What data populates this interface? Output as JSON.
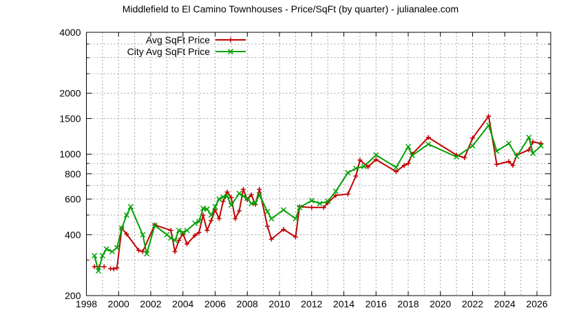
{
  "chart_data": {
    "type": "line",
    "title": "Middlefield to El Camino Townhouses - Price/SqFt (by quarter) - julianalee.com",
    "xlabel": "",
    "ylabel": "",
    "xlim": [
      1998,
      2027
    ],
    "ylim": [
      200,
      4000
    ],
    "yscale": "log",
    "grid": true,
    "legend_position": "top-left",
    "x_ticks": [
      "1998",
      "2000",
      "2002",
      "2004",
      "2006",
      "2008",
      "2010",
      "2012",
      "2014",
      "2016",
      "2018",
      "2020",
      "2022",
      "2024",
      "2026"
    ],
    "y_ticks": [
      "200",
      "400",
      "600",
      "800",
      "1000",
      "1500",
      "2000",
      "4000"
    ],
    "series": [
      {
        "name": "Avg SqFt Price",
        "color": "#c00000",
        "marker": "plus",
        "segments": [
          [
            [
              1998.5,
              278
            ],
            [
              1998.8,
              278
            ]
          ],
          [
            [
              1999.1,
              278
            ]
          ],
          [
            [
              1999.5,
              272
            ],
            [
              1999.7,
              271
            ],
            [
              1999.9,
              274
            ],
            [
              2000.2,
              430
            ],
            [
              2000.5,
              403
            ],
            [
              2001.25,
              335
            ],
            [
              2001.5,
              330
            ],
            [
              2002.25,
              447
            ],
            [
              2003.25,
              420
            ],
            [
              2003.5,
              330
            ],
            [
              2003.75,
              375
            ],
            [
              2004.0,
              405
            ],
            [
              2004.25,
              360
            ],
            [
              2004.75,
              397
            ],
            [
              2005.0,
              410
            ],
            [
              2005.25,
              500
            ],
            [
              2005.5,
              420
            ],
            [
              2005.75,
              470
            ],
            [
              2006.0,
              530
            ],
            [
              2006.25,
              480
            ],
            [
              2006.5,
              585
            ],
            [
              2006.75,
              650
            ],
            [
              2007.0,
              610
            ],
            [
              2007.25,
              480
            ],
            [
              2007.5,
              525
            ],
            [
              2007.75,
              670
            ],
            [
              2008.0,
              595
            ],
            [
              2008.25,
              630
            ],
            [
              2008.5,
              565
            ],
            [
              2008.75,
              670
            ],
            [
              2009.25,
              440
            ],
            [
              2009.5,
              380
            ],
            [
              2010.25,
              425
            ],
            [
              2011.0,
              390
            ],
            [
              2011.25,
              550
            ],
            [
              2012.0,
              545
            ],
            [
              2012.75,
              545
            ],
            [
              2013.0,
              575
            ],
            [
              2013.5,
              625
            ],
            [
              2014.25,
              635
            ],
            [
              2014.75,
              780
            ],
            [
              2015.0,
              935
            ],
            [
              2015.5,
              865
            ],
            [
              2016.0,
              940
            ],
            [
              2017.25,
              820
            ],
            [
              2017.75,
              880
            ],
            [
              2018.0,
              900
            ],
            [
              2018.25,
              1000
            ],
            [
              2019.25,
              1210
            ],
            [
              2021.0,
              990
            ],
            [
              2021.5,
              960
            ],
            [
              2022.0,
              1200
            ],
            [
              2023.0,
              1540
            ],
            [
              2023.5,
              890
            ],
            [
              2024.25,
              920
            ],
            [
              2024.5,
              880
            ],
            [
              2024.75,
              990
            ],
            [
              2025.5,
              1050
            ],
            [
              2025.75,
              1150
            ],
            [
              2026.25,
              1130
            ]
          ]
        ]
      },
      {
        "name": "City Avg SqFt Price",
        "color": "#00a000",
        "marker": "cross",
        "segments": [
          [
            [
              1998.5,
              315
            ],
            [
              1998.75,
              265
            ],
            [
              1999.0,
              315
            ],
            [
              1999.25,
              340
            ],
            [
              1999.6,
              330
            ],
            [
              1999.9,
              345
            ],
            [
              2000.2,
              430
            ],
            [
              2000.5,
              500
            ],
            [
              2000.75,
              550
            ],
            [
              2001.5,
              400
            ],
            [
              2001.75,
              322
            ],
            [
              2002.25,
              445
            ],
            [
              2003.0,
              400
            ],
            [
              2003.25,
              385
            ],
            [
              2003.5,
              375
            ],
            [
              2003.75,
              420
            ],
            [
              2004.0,
              410
            ],
            [
              2004.25,
              420
            ],
            [
              2004.75,
              455
            ],
            [
              2005.0,
              465
            ],
            [
              2005.25,
              540
            ],
            [
              2005.5,
              535
            ],
            [
              2005.75,
              500
            ],
            [
              2006.0,
              550
            ],
            [
              2006.25,
              600
            ],
            [
              2006.5,
              615
            ],
            [
              2006.75,
              620
            ],
            [
              2007.0,
              560
            ],
            [
              2007.5,
              640
            ],
            [
              2007.75,
              620
            ],
            [
              2008.0,
              605
            ],
            [
              2008.25,
              570
            ],
            [
              2008.5,
              575
            ],
            [
              2008.75,
              630
            ],
            [
              2009.25,
              520
            ],
            [
              2009.5,
              480
            ],
            [
              2010.25,
              530
            ],
            [
              2011.0,
              480
            ],
            [
              2011.25,
              545
            ],
            [
              2012.0,
              590
            ],
            [
              2012.5,
              570
            ],
            [
              2013.0,
              585
            ],
            [
              2013.5,
              655
            ],
            [
              2014.25,
              810
            ],
            [
              2014.75,
              850
            ],
            [
              2015.25,
              870
            ],
            [
              2016.0,
              990
            ],
            [
              2017.25,
              860
            ],
            [
              2018.0,
              1090
            ],
            [
              2018.25,
              985
            ],
            [
              2019.25,
              1120
            ],
            [
              2021.0,
              970
            ],
            [
              2022.0,
              1100
            ],
            [
              2023.0,
              1390
            ],
            [
              2023.5,
              1035
            ],
            [
              2024.25,
              1130
            ],
            [
              2024.75,
              975
            ],
            [
              2025.5,
              1210
            ],
            [
              2025.75,
              1010
            ],
            [
              2026.25,
              1100
            ]
          ]
        ]
      }
    ]
  }
}
